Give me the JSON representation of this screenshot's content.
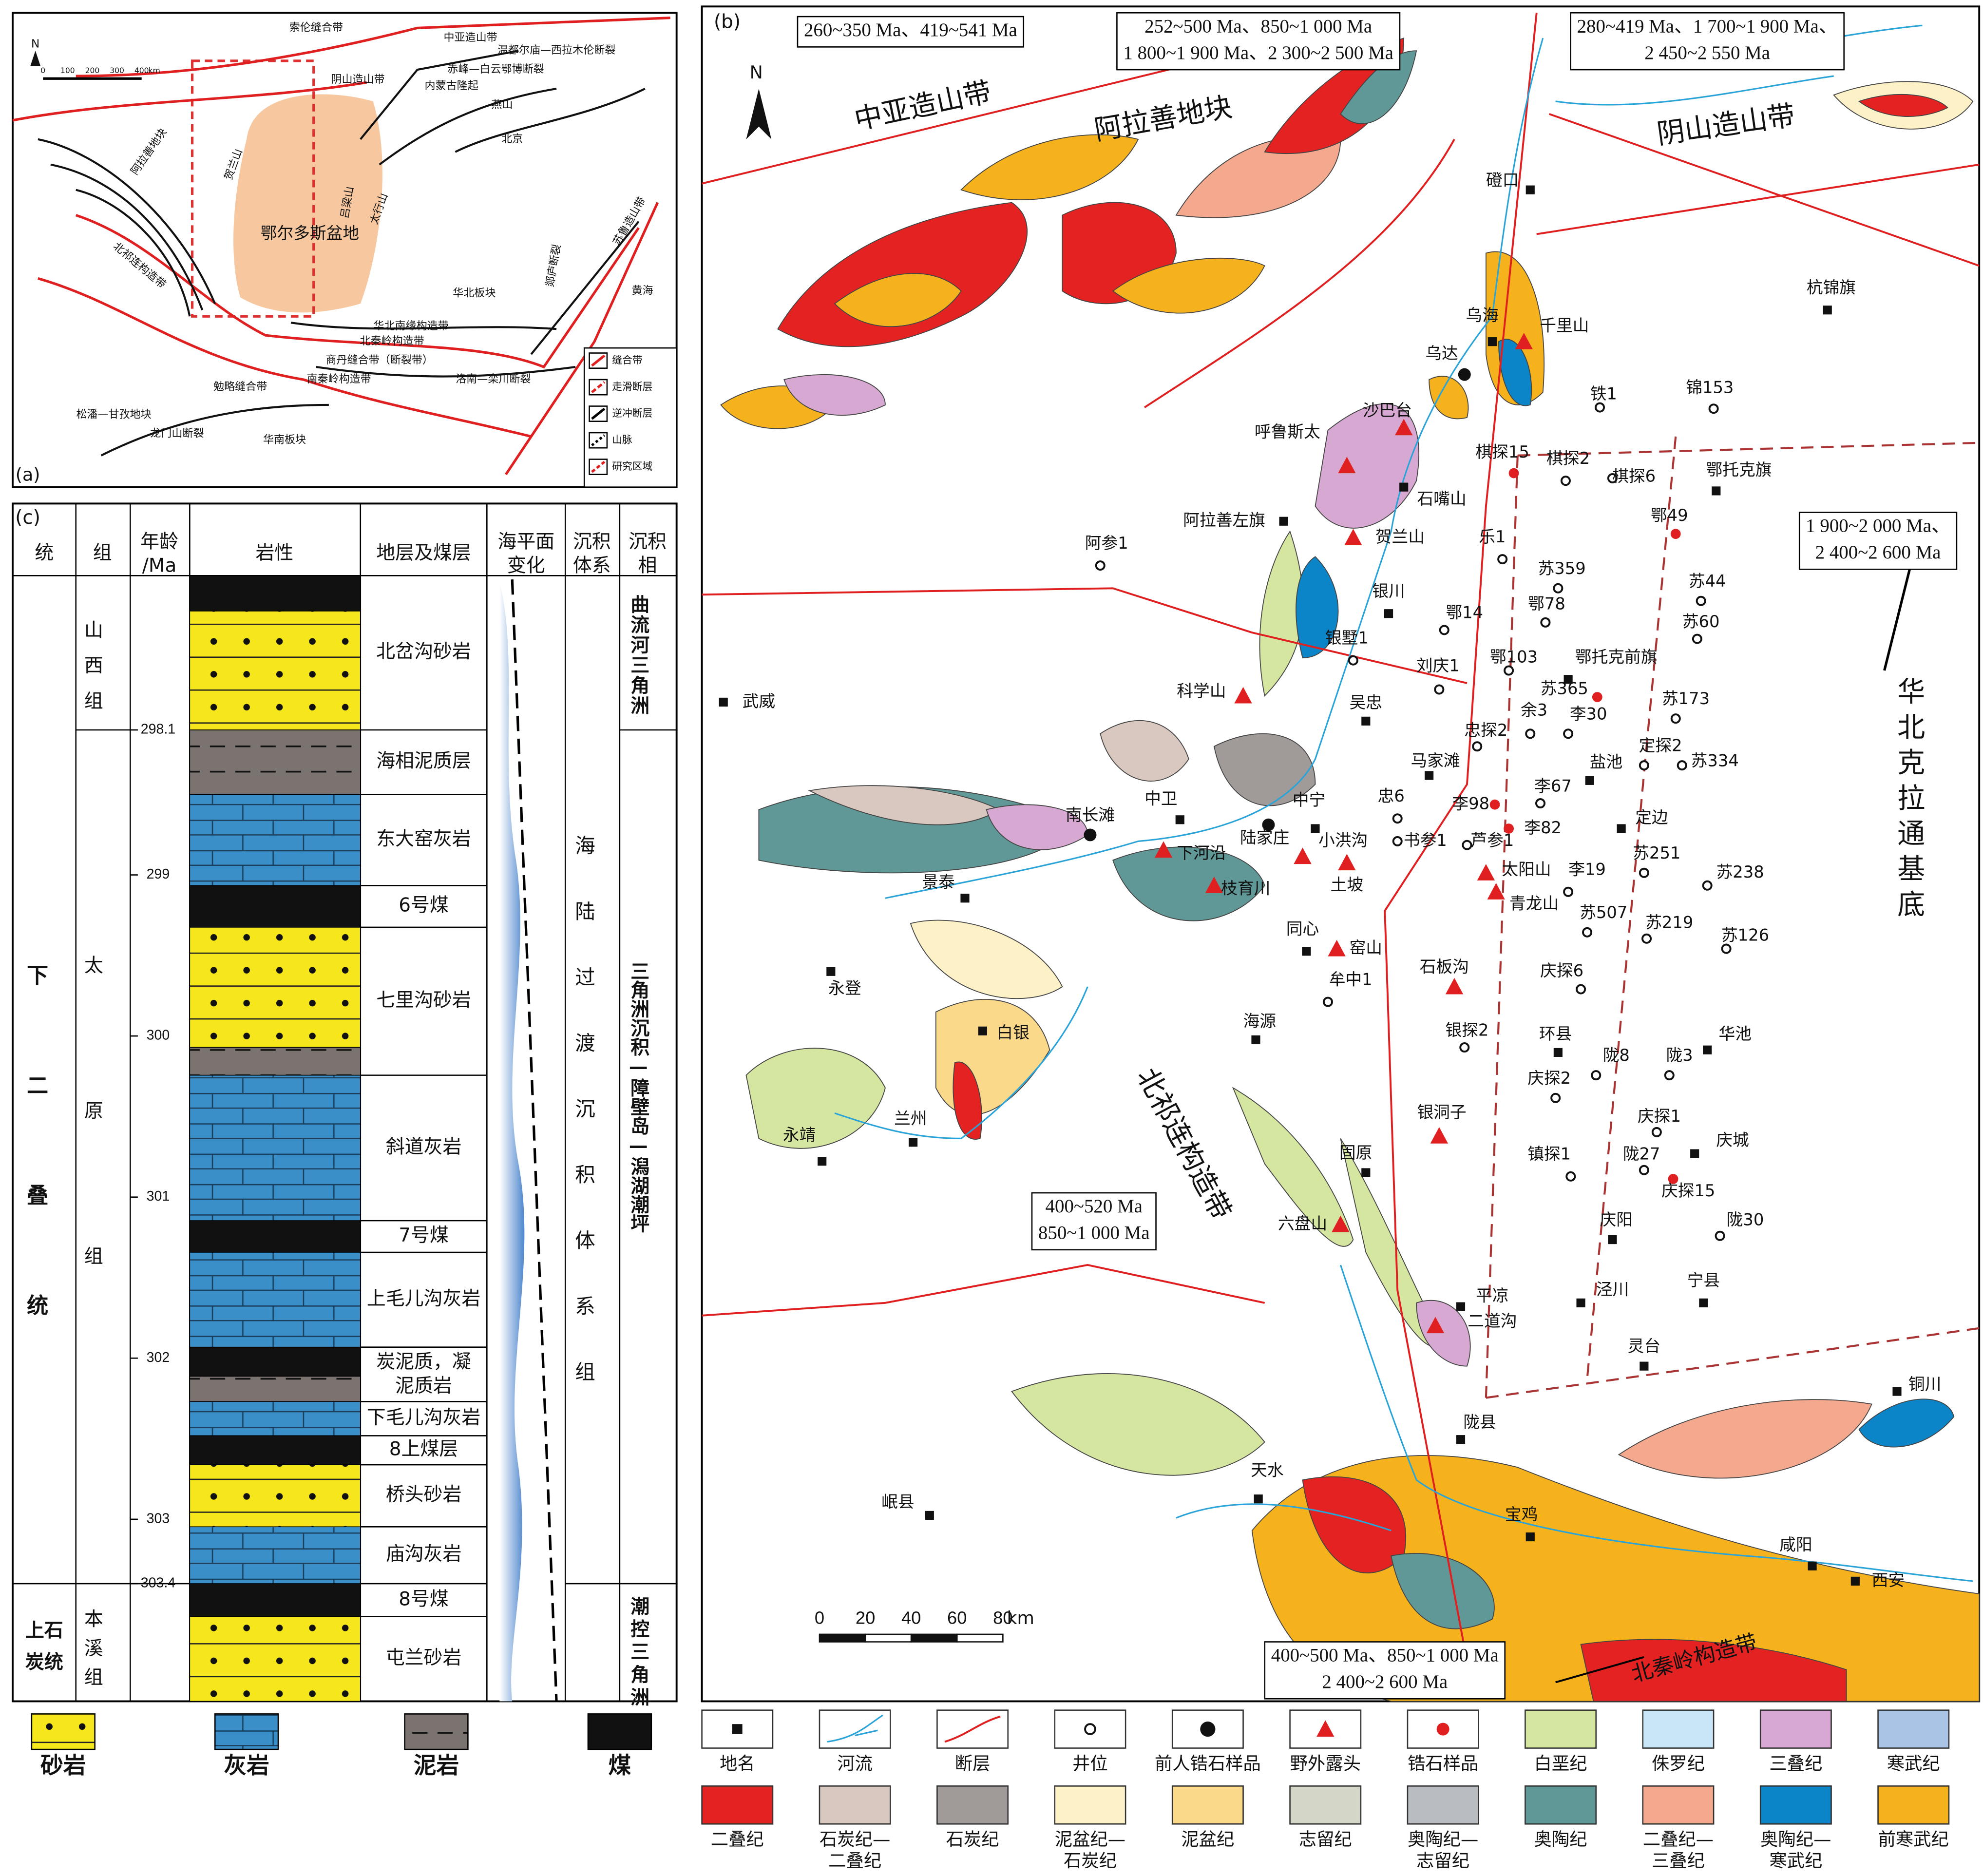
{
  "panel_a": {
    "label": "(a)",
    "north": "N",
    "scale_ticks": [
      0,
      100,
      200,
      300,
      400
    ],
    "scale_unit": "km",
    "labels": [
      "索伦缝合带",
      "中亚造山带",
      "温都尔庙—西拉木伦断裂",
      "赤峰—白云鄂博断裂",
      "阴山造山带",
      "内蒙古隆起",
      "燕山",
      "北京",
      "阿拉善地块",
      "贺兰山",
      "吕梁山",
      "太行山",
      "鄂尔多斯盆地",
      "北祁连构造带",
      "苏鲁造山带",
      "郯庐断裂",
      "华北板块",
      "黄海",
      "华北南缘构造带",
      "北秦岭构造带",
      "商丹缝合带（断裂带）",
      "南秦岭构造带",
      "洛南—栾川断裂",
      "松潘—甘孜地块",
      "勉略缝合带",
      "龙门山断裂",
      "华南板块"
    ],
    "legend": [
      "缝合带",
      "走滑断层",
      "逆冲断层",
      "山脉",
      "研究区域"
    ]
  },
  "panel_b": {
    "label": "(b)",
    "north": "N",
    "age_boxes": [
      [
        "260~350 Ma、419~541 Ma"
      ],
      [
        "252~500 Ma、850~1 000 Ma",
        "1 800~1 900 Ma、2 300~2 500 Ma"
      ],
      [
        "280~419 Ma、1 700~1 900 Ma、",
        "2 450~2 550 Ma"
      ],
      [
        "1 900~2 000 Ma、",
        "2 400~2 600 Ma"
      ],
      [
        "400~520 Ma",
        "850~1 000 Ma"
      ],
      [
        "400~500 Ma、850~1 000 Ma",
        "2 400~2 600 Ma"
      ]
    ],
    "regions": [
      "中亚造山带",
      "阿拉善地块",
      "阴山造山带",
      "北祁连构造带",
      "北秦岭构造带",
      "华北克拉通基底"
    ],
    "places": [
      "磴口",
      "杭锦旗",
      "乌海",
      "石嘴山",
      "阿拉善左旗",
      "鄂托克旗",
      "银川",
      "吴忠",
      "武威",
      "鄂托克前旗",
      "盐池",
      "定边",
      "中卫",
      "中宁",
      "景泰",
      "同心",
      "永登",
      "白银",
      "海源",
      "兰州",
      "永靖",
      "环县",
      "华池",
      "庆城",
      "固原",
      "庆阳",
      "平凉",
      "泾川",
      "宁县",
      "灵台",
      "陇县",
      "天水",
      "岷县",
      "宝鸡",
      "咸阳",
      "西安",
      "铜川",
      "马家滩"
    ],
    "wells": [
      "铁1",
      "锦153",
      "棋探2",
      "棋探6",
      "阿参1",
      "乐1",
      "苏359",
      "鄂78",
      "苏44",
      "鄂14",
      "苏60",
      "银墅1",
      "刘庆1",
      "鄂103",
      "余3",
      "李30",
      "苏173",
      "忠探2",
      "定探2",
      "苏334",
      "李67",
      "忠6",
      "书参1",
      "芦参1",
      "李19",
      "苏251",
      "苏238",
      "苏507",
      "苏219",
      "苏126",
      "庆探6",
      "牟中1",
      "银探2",
      "陇8",
      "陇3",
      "庆探2",
      "庆探1",
      "陇27",
      "镇探1",
      "陇30"
    ],
    "outcrops": [
      "呼鲁斯太",
      "沙巴台",
      "千里山",
      "贺兰山",
      "科学山",
      "下河沿",
      "小洪沟",
      "土坡",
      "枝育川",
      "窑山",
      "石板沟",
      "银洞子",
      "六盘山",
      "二道沟",
      "太阳山",
      "青龙山"
    ],
    "previous_samples": [
      "乌达",
      "南长滩",
      "陆家庄"
    ],
    "samples": [
      "棋探15",
      "鄂49",
      "苏365",
      "李98",
      "李82",
      "庆探15"
    ],
    "scale_ticks": [
      0,
      20,
      40,
      60,
      80
    ],
    "scale_unit": "km",
    "legend": [
      "地名",
      "河流",
      "断层",
      "井位",
      "前人锆石样品",
      "野外露头",
      "锆石样品",
      "白垩纪",
      "侏罗纪",
      "三叠纪",
      "寒武纪",
      "二叠纪",
      "石炭纪—二叠纪",
      "石炭纪",
      "泥盆纪—石炭纪",
      "泥盆纪",
      "志留纪",
      "奥陶纪—志留纪",
      "奥陶纪",
      "二叠纪—三叠纪",
      "奥陶纪—寒武纪",
      "前寒武纪"
    ]
  },
  "panel_c": {
    "label": "(c)",
    "headers": [
      [
        "统"
      ],
      [
        "组"
      ],
      [
        "年龄",
        "/Ma"
      ],
      [
        "岩性"
      ],
      [
        "地层及煤层"
      ],
      [
        "海平面",
        "变化"
      ],
      [
        "沉积",
        "体系"
      ],
      [
        "沉积",
        "相"
      ]
    ],
    "series": [
      "下二叠统",
      [
        "上石",
        "炭统"
      ]
    ],
    "groups": [
      "山西组",
      "太原组",
      "本溪组"
    ],
    "age_ticks": [
      298.1,
      299,
      300,
      301,
      302,
      303,
      303.4
    ],
    "strata": [
      "北岔沟砂岩",
      "海相泥质层",
      "东大窑灰岩",
      "6号煤",
      "七里沟砂岩",
      "斜道灰岩",
      "7号煤",
      "上毛儿沟灰岩",
      [
        "炭泥质，凝",
        "泥质岩"
      ],
      "下毛儿沟灰岩",
      "8上煤层",
      "桥头砂岩",
      "庙沟灰岩",
      "8号煤",
      "屯兰砂岩"
    ],
    "system": "海陆过渡沉积体系组",
    "facies": [
      "曲流河三角洲",
      "三角洲沉积—障壁岛—潟湖潮坪",
      "潮控三角洲"
    ],
    "lithology_legend": [
      "砂岩",
      "灰岩",
      "泥岩",
      "煤"
    ]
  }
}
